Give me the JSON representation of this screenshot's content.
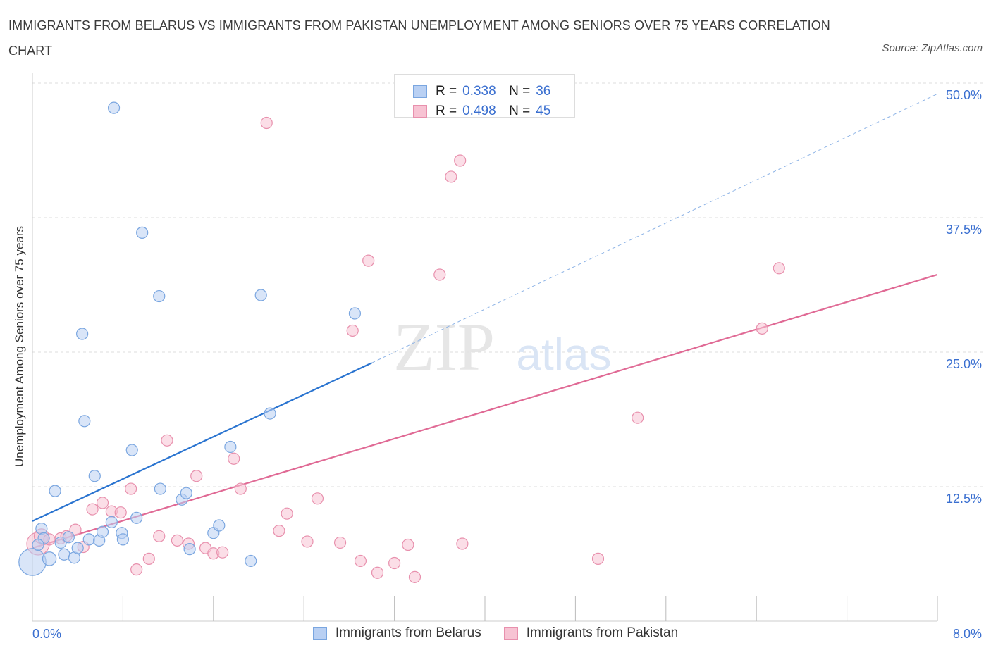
{
  "title": "IMMIGRANTS FROM BELARUS VS IMMIGRANTS FROM PAKISTAN UNEMPLOYMENT AMONG SENIORS OVER 75 YEARS CORRELATION CHART",
  "source": "Source: ZipAtlas.com",
  "watermark": {
    "zip": "ZIP",
    "atlas": "atlas"
  },
  "legend_stats": [
    {
      "r_label": "R =",
      "r_value": "0.338",
      "n_label": "N =",
      "n_value": "36"
    },
    {
      "r_label": "R =",
      "r_value": "0.498",
      "n_label": "N =",
      "n_value": "45"
    }
  ],
  "colors": {
    "belarus_fill": "#b9d0f3",
    "belarus_stroke": "#7aa6e0",
    "belarus_line": "#2a74d0",
    "pakistan_fill": "#f7c3d3",
    "pakistan_stroke": "#e890ad",
    "pakistan_line": "#e06a95",
    "grid": "#dddddd",
    "axis_label": "#3a6fd0"
  },
  "chart_data": {
    "type": "scatter",
    "title": "IMMIGRANTS FROM BELARUS VS IMMIGRANTS FROM PAKISTAN UNEMPLOYMENT AMONG SENIORS OVER 75 YEARS CORRELATION CHART",
    "xlabel": "",
    "ylabel": "Unemployment Among Seniors over 75 years",
    "xlim": [
      0,
      8
    ],
    "ylim": [
      0,
      50
    ],
    "x_tick_labels": [
      "0.0%",
      "8.0%"
    ],
    "y_ticks": [
      12.5,
      25,
      37.5,
      50
    ],
    "y_tick_labels": [
      "12.5%",
      "25.0%",
      "37.5%",
      "50.0%"
    ],
    "grid": true,
    "legend": "bottom-center",
    "series": [
      {
        "name": "Immigrants from Belarus",
        "r": 0.338,
        "n": 36,
        "trend": {
          "x0": 0,
          "y0": 9.3,
          "x1": 3.0,
          "y1": 24.0,
          "dashed_to_x": 8.0,
          "dashed_to_y": 49.0
        },
        "points": [
          [
            0.0,
            5.5,
            2.4
          ],
          [
            0.08,
            8.6,
            1
          ],
          [
            0.1,
            7.7,
            1
          ],
          [
            0.15,
            5.8,
            1.2
          ],
          [
            0.2,
            12.1,
            1
          ],
          [
            0.25,
            7.3,
            1
          ],
          [
            0.28,
            6.2,
            1
          ],
          [
            0.32,
            7.8,
            1
          ],
          [
            0.37,
            5.9,
            1
          ],
          [
            0.4,
            6.8,
            1
          ],
          [
            0.44,
            26.7,
            1
          ],
          [
            0.46,
            18.6,
            1
          ],
          [
            0.5,
            7.6,
            1
          ],
          [
            0.55,
            13.5,
            1
          ],
          [
            0.59,
            7.5,
            1
          ],
          [
            0.62,
            8.3,
            1
          ],
          [
            0.7,
            9.2,
            1
          ],
          [
            0.72,
            47.7,
            1
          ],
          [
            0.79,
            8.2,
            1
          ],
          [
            0.8,
            7.6,
            1
          ],
          [
            0.88,
            15.9,
            1
          ],
          [
            0.92,
            9.6,
            1
          ],
          [
            0.97,
            36.1,
            1
          ],
          [
            1.12,
            30.2,
            1
          ],
          [
            1.13,
            12.3,
            1
          ],
          [
            1.32,
            11.3,
            1
          ],
          [
            1.36,
            11.9,
            1
          ],
          [
            1.39,
            6.7,
            1
          ],
          [
            1.6,
            8.2,
            1
          ],
          [
            1.65,
            8.9,
            1
          ],
          [
            1.75,
            16.2,
            1
          ],
          [
            1.93,
            5.6,
            1
          ],
          [
            2.02,
            30.3,
            1
          ],
          [
            2.1,
            19.3,
            1
          ],
          [
            2.85,
            28.6,
            1
          ],
          [
            0.05,
            7.1,
            1
          ]
        ]
      },
      {
        "name": "Immigrants from Pakistan",
        "r": 0.498,
        "n": 45,
        "trend": {
          "x0": 0,
          "y0": 6.8,
          "x1": 8.0,
          "y1": 32.2
        },
        "points": [
          [
            0.05,
            7.2,
            2.0
          ],
          [
            0.08,
            7.9,
            1.3
          ],
          [
            0.15,
            7.6,
            1
          ],
          [
            0.25,
            7.7,
            1
          ],
          [
            0.3,
            7.9,
            1
          ],
          [
            0.38,
            8.5,
            1
          ],
          [
            0.45,
            6.9,
            1
          ],
          [
            0.53,
            10.4,
            1
          ],
          [
            0.62,
            11.0,
            1
          ],
          [
            0.7,
            10.2,
            1
          ],
          [
            0.78,
            10.1,
            1
          ],
          [
            0.87,
            12.3,
            1
          ],
          [
            0.92,
            4.8,
            1
          ],
          [
            1.03,
            5.8,
            1
          ],
          [
            1.12,
            7.9,
            1
          ],
          [
            1.19,
            16.8,
            1
          ],
          [
            1.28,
            7.5,
            1
          ],
          [
            1.38,
            7.2,
            1
          ],
          [
            1.45,
            13.5,
            1
          ],
          [
            1.53,
            6.8,
            1
          ],
          [
            1.6,
            6.3,
            1
          ],
          [
            1.68,
            6.4,
            1
          ],
          [
            1.78,
            15.1,
            1
          ],
          [
            1.84,
            12.3,
            1
          ],
          [
            2.07,
            46.3,
            1
          ],
          [
            2.18,
            8.4,
            1
          ],
          [
            2.25,
            10.0,
            1
          ],
          [
            2.43,
            7.4,
            1
          ],
          [
            2.52,
            11.4,
            1
          ],
          [
            2.72,
            7.3,
            1
          ],
          [
            2.83,
            27.0,
            1
          ],
          [
            2.9,
            5.6,
            1
          ],
          [
            2.97,
            33.5,
            1
          ],
          [
            3.05,
            4.5,
            1
          ],
          [
            3.2,
            5.4,
            1
          ],
          [
            3.32,
            7.1,
            1
          ],
          [
            3.38,
            4.1,
            1
          ],
          [
            3.6,
            32.2,
            1
          ],
          [
            3.7,
            41.3,
            1
          ],
          [
            3.78,
            42.8,
            1
          ],
          [
            3.8,
            7.2,
            1
          ],
          [
            5.0,
            5.8,
            1
          ],
          [
            5.35,
            18.9,
            1
          ],
          [
            6.45,
            27.2,
            1
          ],
          [
            6.6,
            32.8,
            1
          ]
        ]
      }
    ]
  }
}
